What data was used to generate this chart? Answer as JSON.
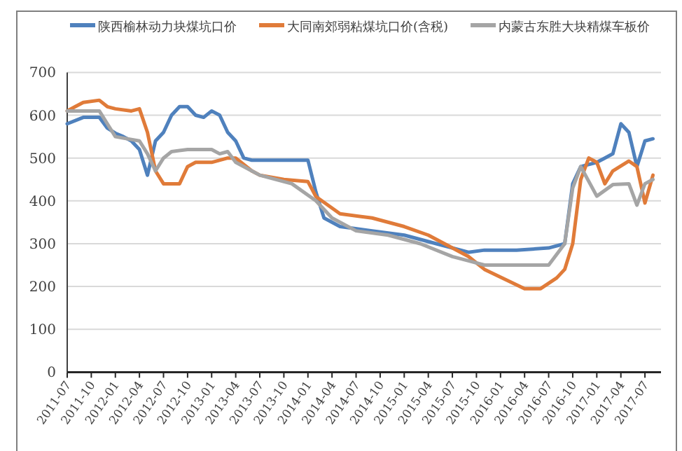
{
  "chart_data": {
    "type": "line",
    "xlim": [
      "2011-07",
      "2017-09"
    ],
    "xticks": [
      "2011-07",
      "2011-10",
      "2012-01",
      "2012-04",
      "2012-07",
      "2012-10",
      "2013-01",
      "2013-04",
      "2013-07",
      "2013-10",
      "2014-01",
      "2014-04",
      "2014-07",
      "2014-10",
      "2015-01",
      "2015-04",
      "2015-07",
      "2015-10",
      "2016-01",
      "2016-04",
      "2016-07",
      "2016-10",
      "2017-01",
      "2017-04",
      "2017-07"
    ],
    "ylim": [
      0,
      700
    ],
    "yticks": [
      0,
      100,
      200,
      300,
      400,
      500,
      600,
      700
    ],
    "grid": "y",
    "legend": "top",
    "marker": "none",
    "line_style": "solid",
    "series": [
      {
        "name": "陕西榆林动力块煤坑口价",
        "color": "#4f81bd",
        "x": [
          "2011-07",
          "2011-09",
          "2011-11",
          "2011-12",
          "2012-01",
          "2012-02",
          "2012-03",
          "2012-04",
          "2012-05",
          "2012-06",
          "2012-07",
          "2012-08",
          "2012-09",
          "2012-10",
          "2012-11",
          "2012-12",
          "2013-01",
          "2013-02",
          "2013-03",
          "2013-04",
          "2013-05",
          "2013-06",
          "2013-07",
          "2013-10",
          "2014-01",
          "2014-02",
          "2014-03",
          "2014-05",
          "2014-09",
          "2015-01",
          "2015-05",
          "2015-09",
          "2015-11",
          "2016-03",
          "2016-07",
          "2016-09",
          "2016-10",
          "2016-11",
          "2017-01",
          "2017-02",
          "2017-03",
          "2017-04",
          "2017-05",
          "2017-06",
          "2017-07",
          "2017-08"
        ],
        "values": [
          580,
          595,
          595,
          570,
          558,
          550,
          540,
          520,
          460,
          540,
          560,
          600,
          620,
          620,
          600,
          595,
          610,
          600,
          560,
          540,
          500,
          495,
          495,
          495,
          495,
          420,
          360,
          340,
          330,
          320,
          300,
          280,
          285,
          285,
          290,
          300,
          440,
          480,
          490,
          500,
          510,
          580,
          560,
          480,
          540,
          545
        ]
      },
      {
        "name": "大同南郊弱粘煤坑口价(含税)",
        "color": "#e07b39",
        "x": [
          "2011-07",
          "2011-08",
          "2011-09",
          "2011-11",
          "2011-12",
          "2012-01",
          "2012-03",
          "2012-04",
          "2012-05",
          "2012-06",
          "2012-07",
          "2012-09",
          "2012-10",
          "2012-11",
          "2013-01",
          "2013-03",
          "2013-04",
          "2013-06",
          "2013-07",
          "2013-10",
          "2014-01",
          "2014-02",
          "2014-05",
          "2014-09",
          "2015-01",
          "2015-04",
          "2015-07",
          "2015-09",
          "2015-11",
          "2016-04",
          "2016-06",
          "2016-08",
          "2016-09",
          "2016-10",
          "2016-11",
          "2016-12",
          "2017-01",
          "2017-02",
          "2017-03",
          "2017-05",
          "2017-06",
          "2017-07",
          "2017-08"
        ],
        "values": [
          610,
          620,
          630,
          635,
          620,
          615,
          610,
          615,
          560,
          470,
          440,
          440,
          480,
          490,
          490,
          500,
          500,
          470,
          460,
          450,
          445,
          410,
          370,
          360,
          340,
          320,
          290,
          270,
          240,
          195,
          195,
          220,
          240,
          300,
          450,
          500,
          490,
          440,
          470,
          493,
          480,
          395,
          460
        ]
      },
      {
        "name": "内蒙古东胜大块精煤车板价",
        "color": "#a5a5a5",
        "x": [
          "2011-07",
          "2011-11",
          "2011-12",
          "2012-01",
          "2012-04",
          "2012-05",
          "2012-06",
          "2012-07",
          "2012-08",
          "2012-10",
          "2013-01",
          "2013-02",
          "2013-03",
          "2013-04",
          "2013-06",
          "2013-07",
          "2013-11",
          "2014-02",
          "2014-04",
          "2014-07",
          "2014-11",
          "2015-03",
          "2015-07",
          "2015-09",
          "2015-11",
          "2016-03",
          "2016-07",
          "2016-09",
          "2016-10",
          "2016-11",
          "2017-01",
          "2017-03",
          "2017-05",
          "2017-06",
          "2017-07",
          "2017-08"
        ],
        "values": [
          610,
          610,
          580,
          550,
          540,
          510,
          470,
          500,
          515,
          520,
          520,
          510,
          515,
          490,
          470,
          460,
          440,
          400,
          360,
          330,
          320,
          300,
          270,
          260,
          250,
          250,
          250,
          300,
          430,
          480,
          411,
          438,
          440,
          390,
          440,
          450
        ]
      }
    ]
  }
}
